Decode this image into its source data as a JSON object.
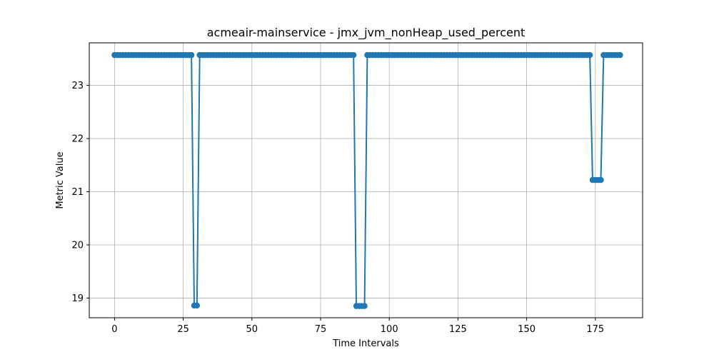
{
  "chart_data": {
    "type": "line",
    "title": "acmeair-mainservice - jmx_jvm_nonHeap_used_percent",
    "xlabel": "Time Intervals",
    "ylabel": "Metric Value",
    "xlim": [
      -9.2,
      192.2
    ],
    "ylim": [
      18.63,
      23.8
    ],
    "xticks": [
      0,
      25,
      50,
      75,
      100,
      125,
      150,
      175
    ],
    "yticks": [
      19,
      20,
      21,
      22,
      23
    ],
    "grid": true,
    "legend": "none",
    "color": "#1f77b4",
    "marker": "circle",
    "series": [
      {
        "values": [
          23.57,
          23.57,
          23.57,
          23.57,
          23.57,
          23.57,
          23.57,
          23.57,
          23.57,
          23.57,
          23.57,
          23.57,
          23.57,
          23.57,
          23.57,
          23.57,
          23.57,
          23.57,
          23.57,
          23.57,
          23.57,
          23.57,
          23.57,
          23.57,
          23.57,
          23.57,
          23.57,
          23.57,
          23.57,
          18.86,
          18.86,
          23.57,
          23.57,
          23.57,
          23.57,
          23.57,
          23.57,
          23.57,
          23.57,
          23.57,
          23.57,
          23.57,
          23.57,
          23.57,
          23.57,
          23.57,
          23.57,
          23.57,
          23.57,
          23.57,
          23.57,
          23.57,
          23.57,
          23.57,
          23.57,
          23.57,
          23.57,
          23.57,
          23.57,
          23.57,
          23.57,
          23.57,
          23.57,
          23.57,
          23.57,
          23.57,
          23.57,
          23.57,
          23.57,
          23.57,
          23.57,
          23.57,
          23.57,
          23.57,
          23.57,
          23.57,
          23.57,
          23.57,
          23.57,
          23.57,
          23.57,
          23.57,
          23.57,
          23.57,
          23.57,
          23.57,
          23.57,
          23.57,
          18.85,
          18.85,
          18.85,
          18.85,
          23.57,
          23.57,
          23.57,
          23.57,
          23.57,
          23.57,
          23.57,
          23.57,
          23.57,
          23.57,
          23.57,
          23.57,
          23.57,
          23.57,
          23.57,
          23.57,
          23.57,
          23.57,
          23.57,
          23.57,
          23.57,
          23.57,
          23.57,
          23.57,
          23.57,
          23.57,
          23.57,
          23.57,
          23.57,
          23.57,
          23.57,
          23.57,
          23.57,
          23.57,
          23.57,
          23.57,
          23.57,
          23.57,
          23.57,
          23.57,
          23.57,
          23.57,
          23.57,
          23.57,
          23.57,
          23.57,
          23.57,
          23.57,
          23.57,
          23.57,
          23.57,
          23.57,
          23.57,
          23.57,
          23.57,
          23.57,
          23.57,
          23.57,
          23.57,
          23.57,
          23.57,
          23.57,
          23.57,
          23.57,
          23.57,
          23.57,
          23.57,
          23.57,
          23.57,
          23.57,
          23.57,
          23.57,
          23.57,
          23.57,
          23.57,
          23.57,
          23.57,
          23.57,
          23.57,
          23.57,
          23.57,
          23.57,
          21.22,
          21.22,
          21.22,
          21.22,
          23.57,
          23.57,
          23.57,
          23.57,
          23.57,
          23.57,
          23.57
        ]
      }
    ]
  }
}
